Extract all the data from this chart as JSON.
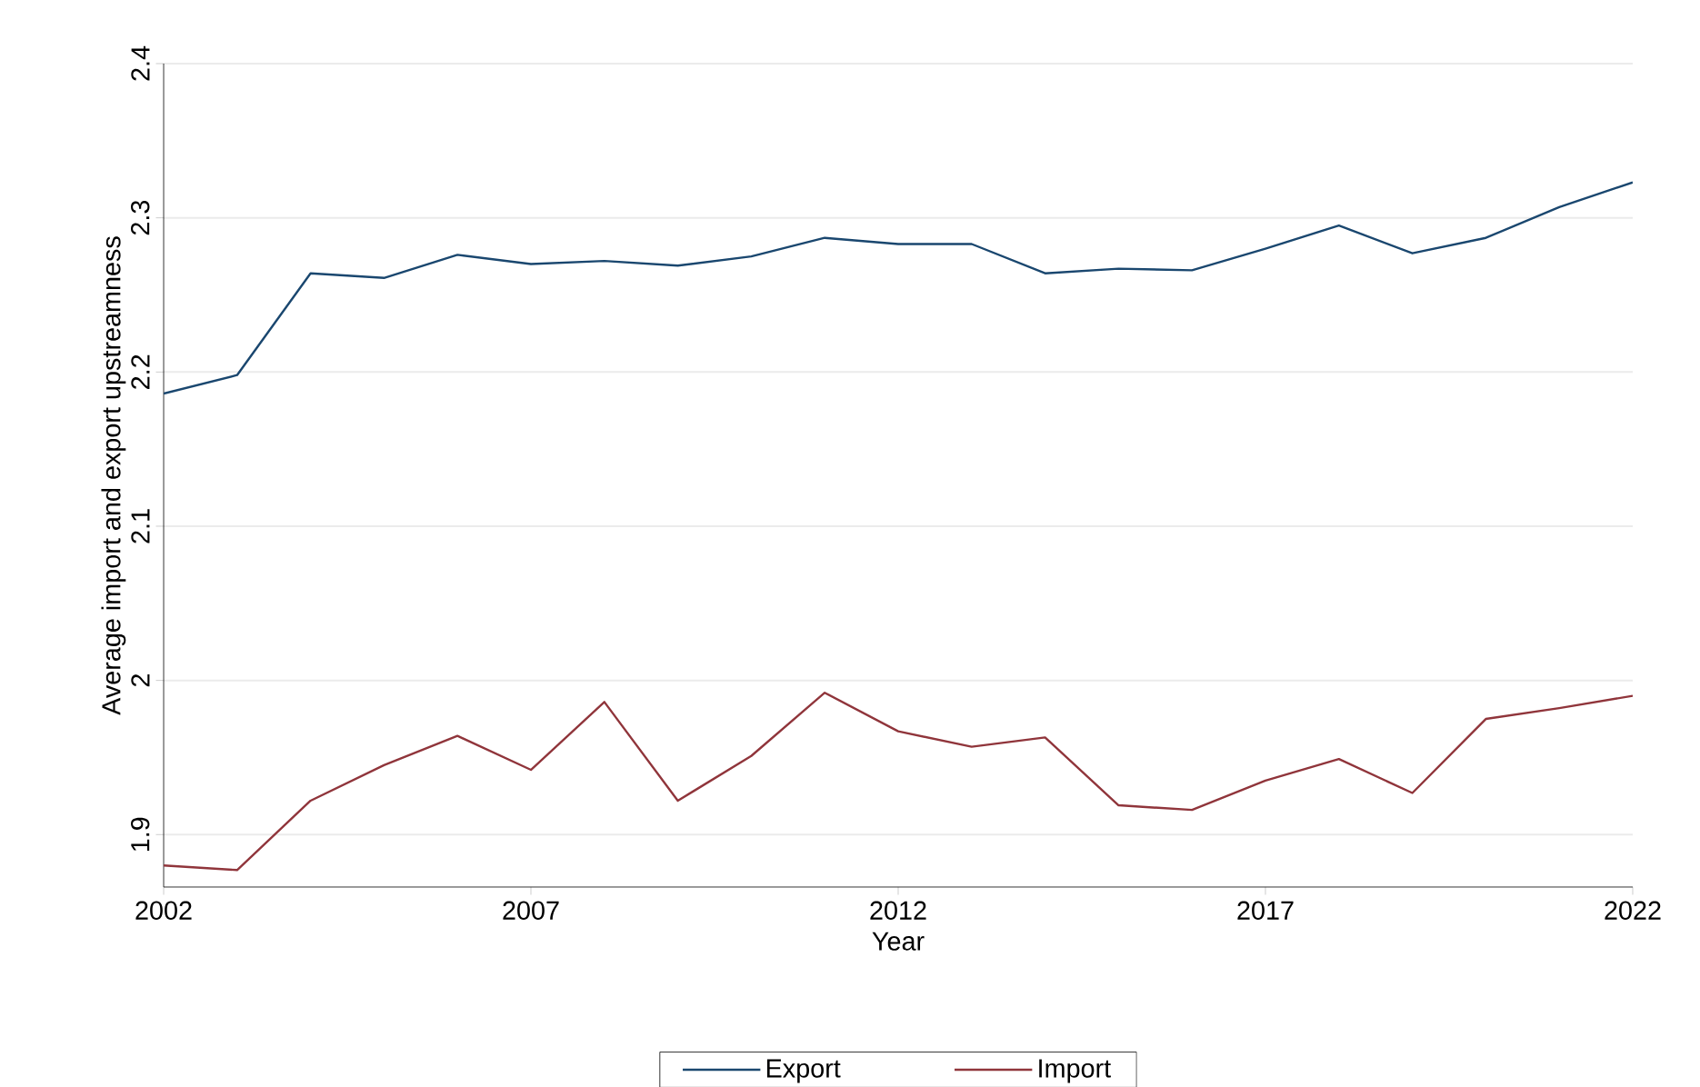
{
  "chart_data": {
    "type": "line",
    "xlabel": "Year",
    "ylabel": "Average import and export upstreamness",
    "x": [
      2002,
      2003,
      2004,
      2005,
      2006,
      2007,
      2008,
      2009,
      2010,
      2011,
      2012,
      2013,
      2014,
      2015,
      2016,
      2017,
      2018,
      2019,
      2020,
      2021,
      2022
    ],
    "series": [
      {
        "name": "Export",
        "color": "#1a476f",
        "values": [
          2.186,
          2.198,
          2.264,
          2.261,
          2.276,
          2.27,
          2.272,
          2.269,
          2.275,
          2.287,
          2.283,
          2.283,
          2.264,
          2.267,
          2.266,
          2.28,
          2.295,
          2.277,
          2.287,
          2.307,
          2.323
        ]
      },
      {
        "name": "Import",
        "color": "#90353b",
        "values": [
          1.88,
          1.877,
          1.922,
          1.945,
          1.964,
          1.942,
          1.986,
          1.922,
          1.951,
          1.992,
          1.967,
          1.957,
          1.963,
          1.919,
          1.916,
          1.935,
          1.949,
          1.927,
          1.975,
          1.982,
          1.99
        ]
      }
    ],
    "xlim": [
      2002,
      2022
    ],
    "ylim": [
      1.866,
      2.4
    ],
    "xticks": [
      2002,
      2007,
      2012,
      2017,
      2022
    ],
    "yticks": [
      1.9,
      2,
      2.1,
      2.2,
      2.3,
      2.4
    ],
    "grid": "y",
    "legend": "bottom",
    "marker": "none",
    "line_style": "solid"
  }
}
